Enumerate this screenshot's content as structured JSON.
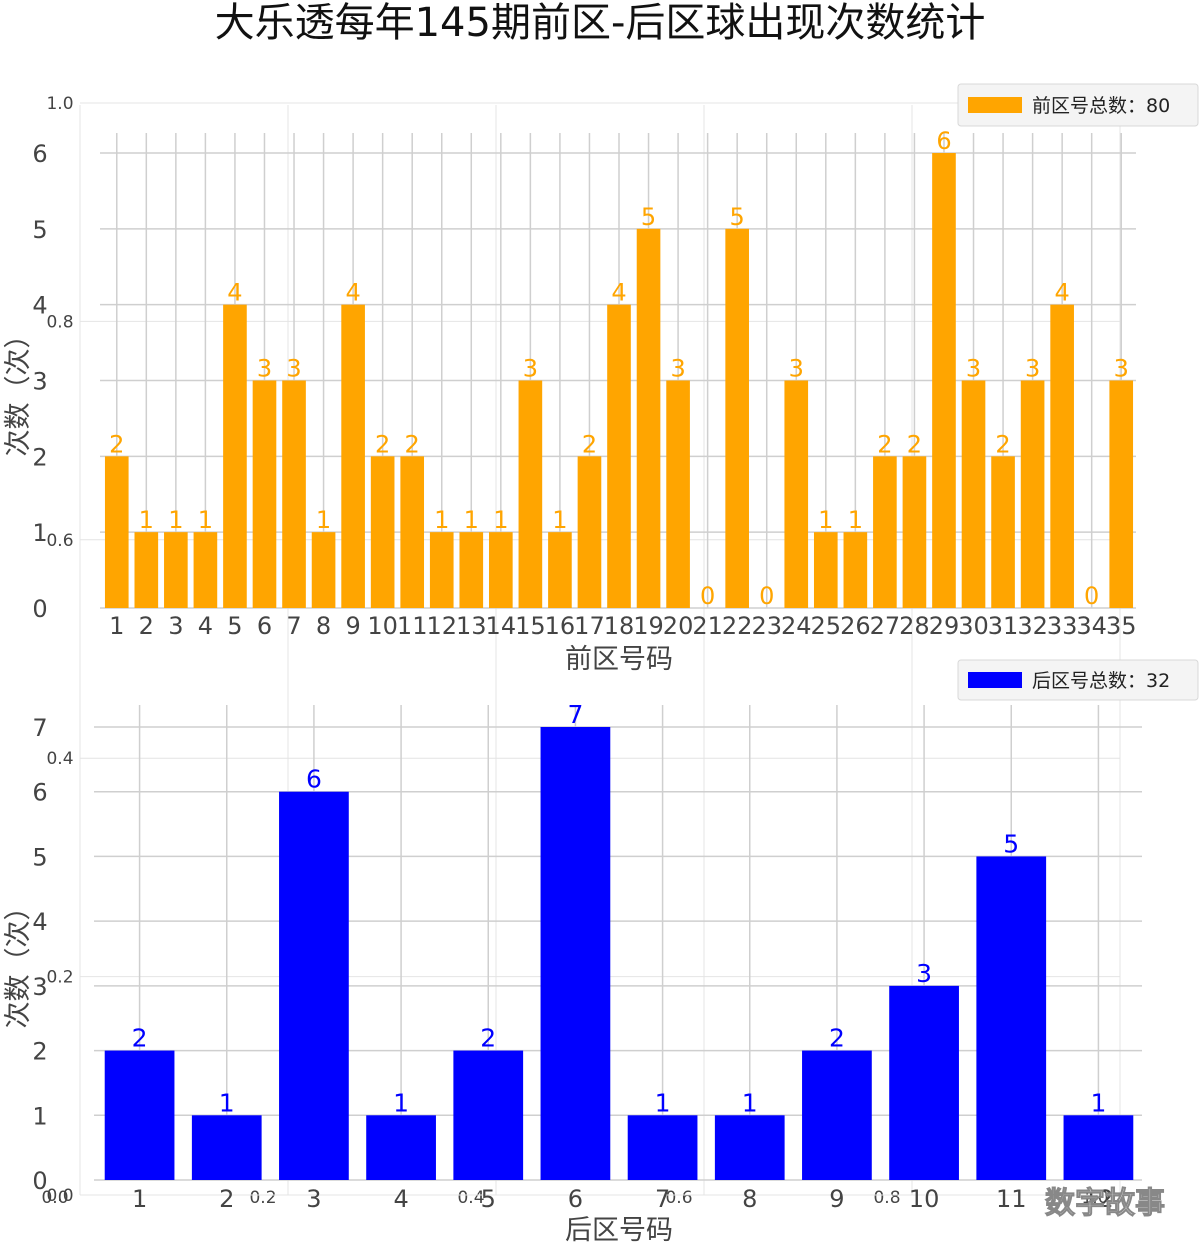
{
  "title": "大乐透每年145期前区-后区球出现次数统计",
  "watermark": "数字故事",
  "ghost_axis": {
    "x_ticks": [
      "0.0",
      "0.2",
      "0.4",
      "0.6",
      "0.8",
      "1.0"
    ],
    "y_ticks": [
      "0.0",
      "0.2",
      "0.4",
      "0.6",
      "0.8",
      "1.0"
    ]
  },
  "chart_data": [
    {
      "type": "bar",
      "xlabel": "前区号码",
      "ylabel": "次数（次）",
      "legend": "前区号总数：80",
      "legend_position": "top-right",
      "color": "#FFA500",
      "grid": true,
      "ylim": [
        0,
        6.3
      ],
      "yticks": [
        0,
        1,
        2,
        3,
        4,
        5,
        6
      ],
      "categories": [
        "1",
        "2",
        "3",
        "4",
        "5",
        "6",
        "7",
        "8",
        "9",
        "10",
        "11",
        "12",
        "13",
        "14",
        "15",
        "16",
        "17",
        "18",
        "19",
        "20",
        "21",
        "22",
        "23",
        "24",
        "25",
        "26",
        "27",
        "28",
        "29",
        "30",
        "31",
        "32",
        "33",
        "34",
        "35"
      ],
      "values": [
        2,
        1,
        1,
        1,
        4,
        3,
        3,
        1,
        4,
        2,
        2,
        1,
        1,
        1,
        3,
        1,
        2,
        4,
        5,
        3,
        0,
        5,
        0,
        3,
        1,
        1,
        2,
        2,
        6,
        3,
        2,
        3,
        4,
        0,
        3
      ]
    },
    {
      "type": "bar",
      "xlabel": "后区号码",
      "ylabel": "次数（次）",
      "legend": "后区号总数：32",
      "legend_position": "top-right",
      "color": "#0000FF",
      "grid": true,
      "ylim": [
        0,
        7.3
      ],
      "yticks": [
        0,
        1,
        2,
        3,
        4,
        5,
        6,
        7
      ],
      "categories": [
        "1",
        "2",
        "3",
        "4",
        "5",
        "6",
        "7",
        "8",
        "9",
        "10",
        "11",
        "12"
      ],
      "values": [
        2,
        1,
        6,
        1,
        2,
        7,
        1,
        1,
        2,
        3,
        5,
        1
      ]
    }
  ]
}
